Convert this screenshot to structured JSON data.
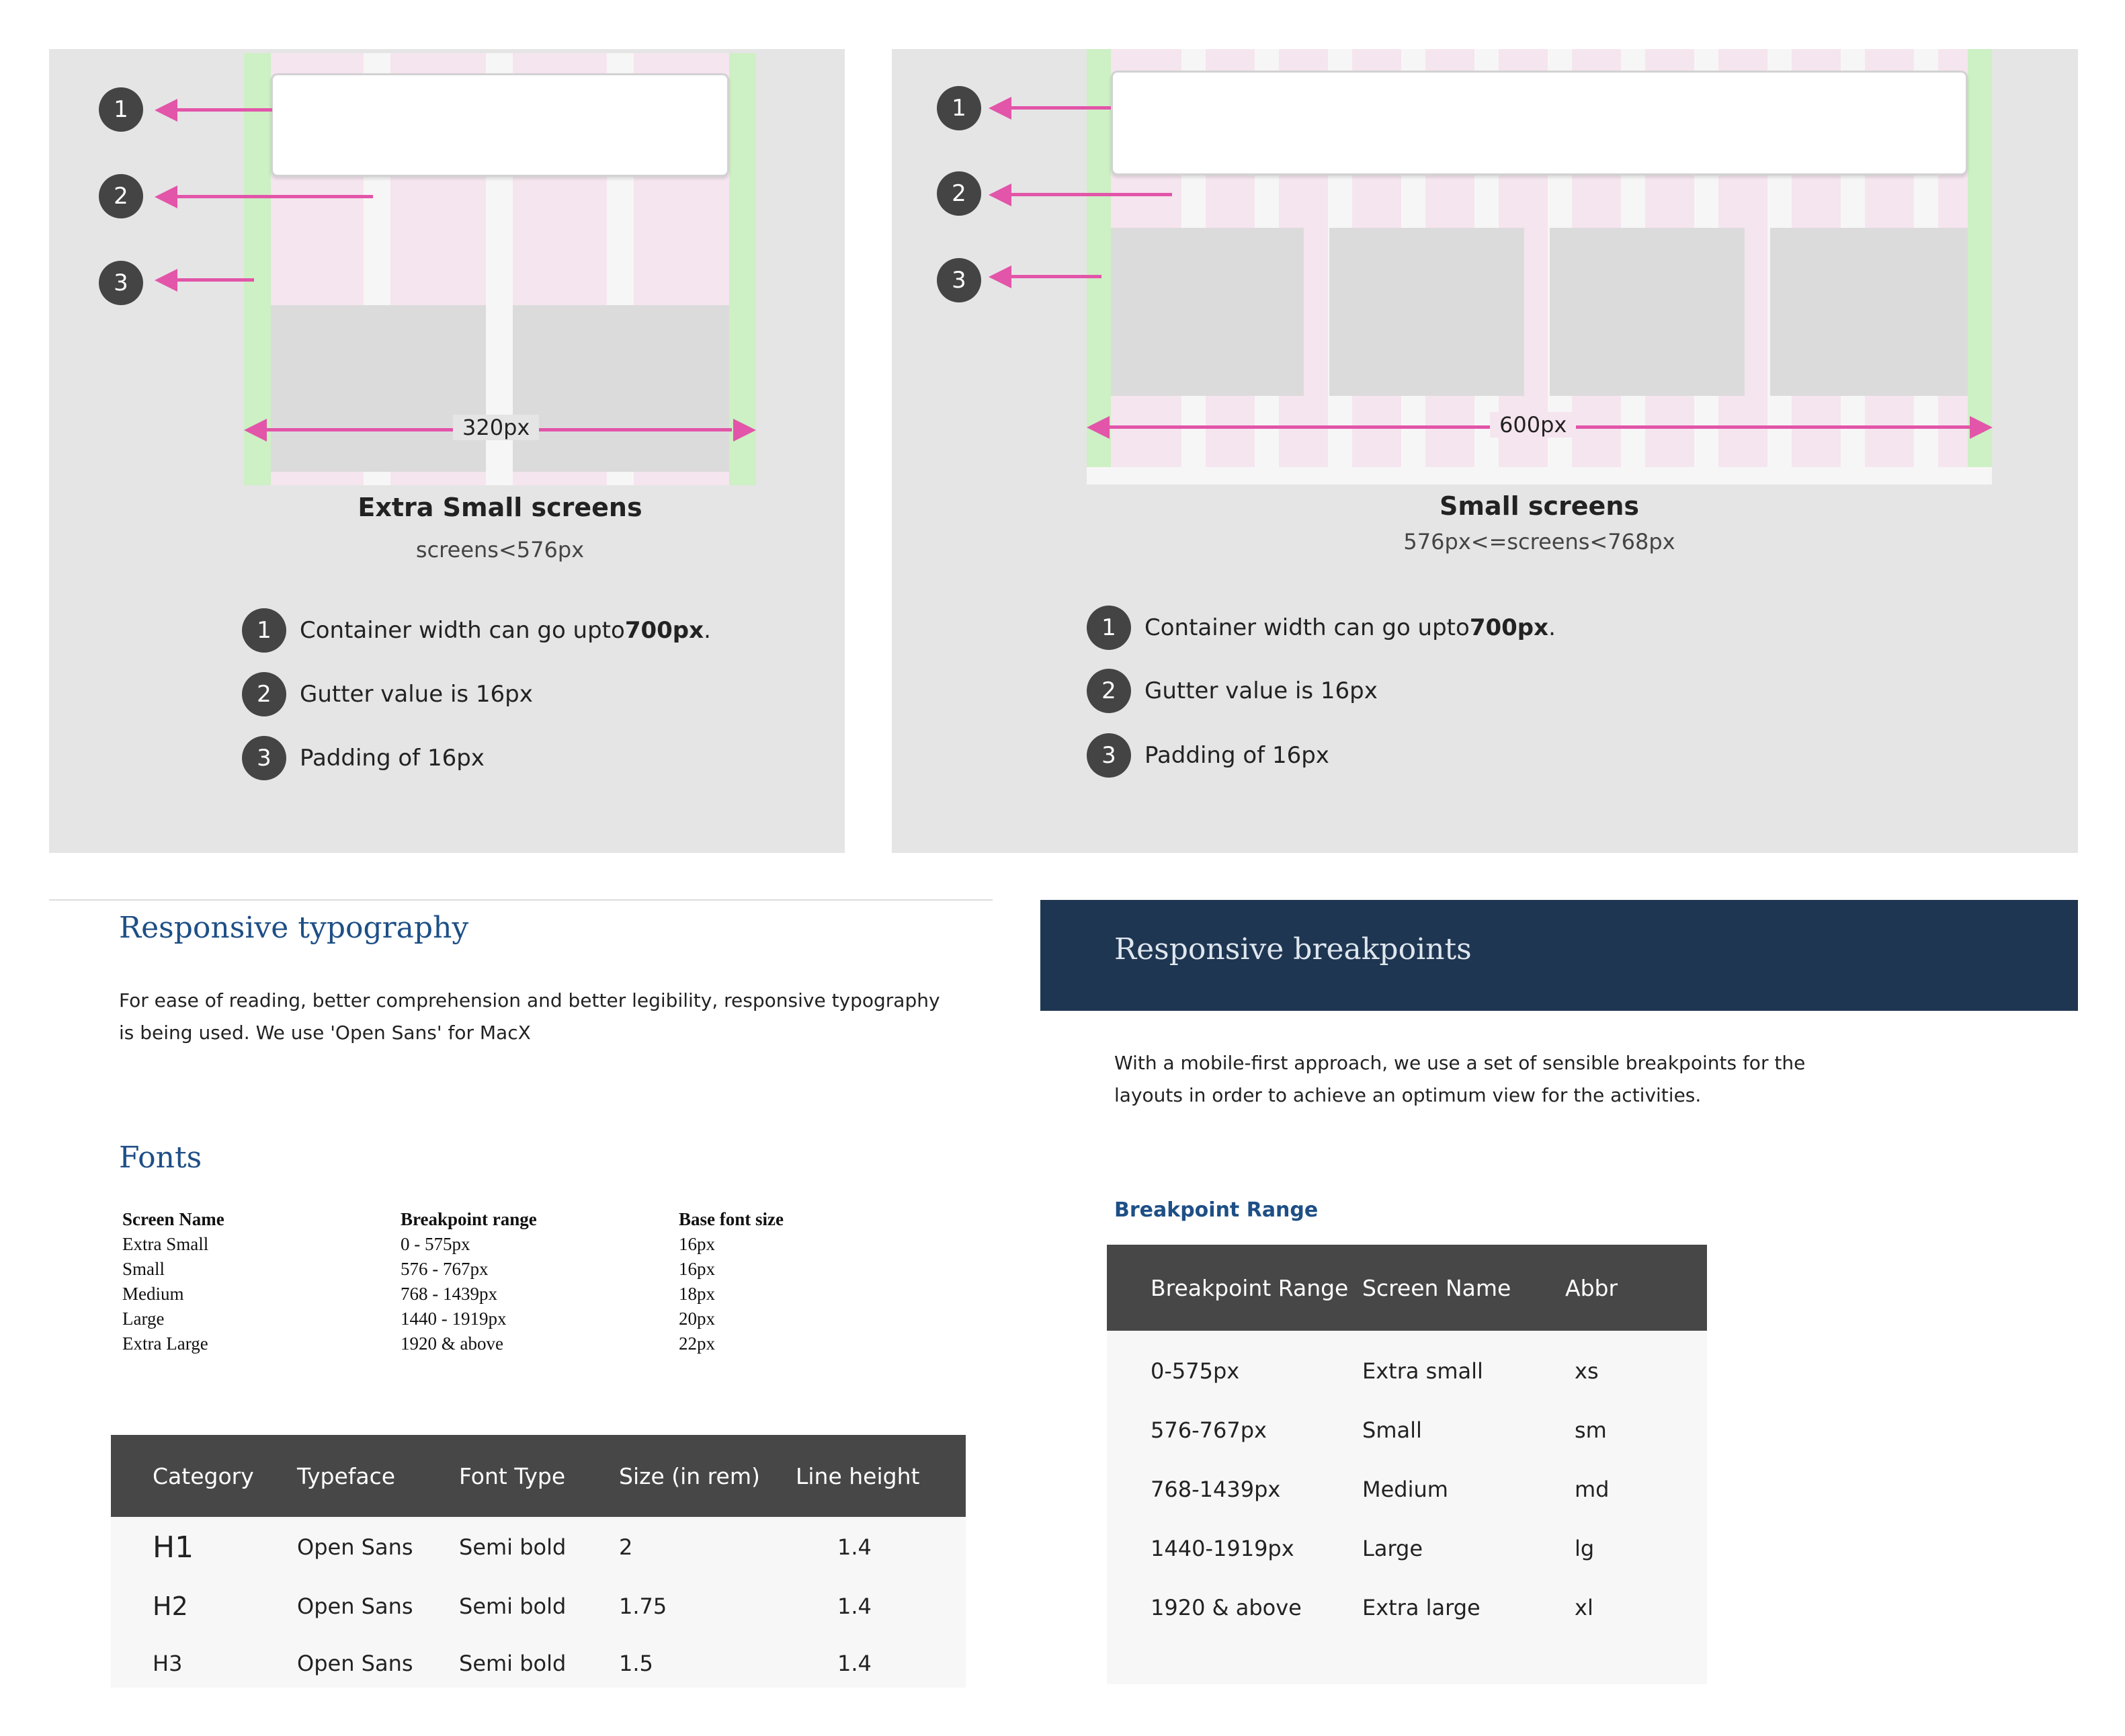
{
  "diagrams": {
    "xs": {
      "badges": [
        "1",
        "2",
        "3"
      ],
      "width_label": "320px",
      "title": "Extra Small screens",
      "subtitle": "screens<576px",
      "legend": [
        {
          "num": "1",
          "text": "Container width can go upto ",
          "bold": "700px",
          "suffix": "."
        },
        {
          "num": "2",
          "text": "Gutter value is 16px",
          "bold": "",
          "suffix": ""
        },
        {
          "num": "3",
          "text": "Padding of 16px",
          "bold": "",
          "suffix": ""
        }
      ]
    },
    "sm": {
      "badges": [
        "1",
        "2",
        "3"
      ],
      "width_label": "600px",
      "title": "Small screens",
      "subtitle": "576px<=screens<768px",
      "legend": [
        {
          "num": "1",
          "text": "Container width can go upto ",
          "bold": "700px",
          "suffix": "."
        },
        {
          "num": "2",
          "text": "Gutter value is 16px",
          "bold": "",
          "suffix": ""
        },
        {
          "num": "3",
          "text": "Padding of 16px",
          "bold": "",
          "suffix": ""
        }
      ]
    }
  },
  "typography": {
    "heading": "Responsive typography",
    "body_line1": "For ease of reading, better comprehension and better legibility, responsive typography",
    "body_line2": "is being used. We use 'Open Sans' for MacX",
    "fonts_heading": "Fonts",
    "fonts_table": {
      "headers": [
        "Screen Name",
        "Breakpoint range",
        "Base font size"
      ],
      "rows": [
        [
          "Extra Small",
          "0 - 575px",
          "16px"
        ],
        [
          "Small",
          "576 - 767px",
          "16px"
        ],
        [
          "Medium",
          "768 - 1439px",
          "18px"
        ],
        [
          "Large",
          "1440 - 1919px",
          "20px"
        ],
        [
          "Extra Large",
          "1920 & above",
          "22px"
        ]
      ]
    },
    "category_table": {
      "headers": [
        "Category",
        "Typeface",
        "Font Type",
        "Size (in rem)",
        "Line height"
      ],
      "rows": [
        [
          "H1",
          "Open Sans",
          "Semi bold",
          "2",
          "1.4"
        ],
        [
          "H2",
          "Open Sans",
          "Semi bold",
          "1.75",
          "1.4"
        ],
        [
          "H3",
          "Open Sans",
          "Semi bold",
          "1.5",
          "1.4"
        ]
      ]
    }
  },
  "breakpoints": {
    "heading": "Responsive breakpoints",
    "body_line1": "With a mobile-first approach, we use a set of sensible breakpoints for the",
    "body_line2": "layouts in order to achieve an optimum  view for the activities.",
    "subheading": "Breakpoint Range",
    "table": {
      "headers": [
        "Breakpoint Range",
        "Screen Name",
        "Abbr"
      ],
      "rows": [
        [
          "0-575px",
          "Extra small",
          "xs"
        ],
        [
          "576-767px",
          "Small",
          "sm"
        ],
        [
          "768-1439px",
          "Medium",
          "md"
        ],
        [
          "1440-1919px",
          "Large",
          "lg"
        ],
        [
          "1920 & above",
          "Extra large",
          "xl"
        ]
      ]
    }
  },
  "colors": {
    "accent_pink": "#e255a9",
    "heading_blue": "#1e4f86",
    "banner_navy": "#1f3652",
    "table_header": "#474747"
  }
}
